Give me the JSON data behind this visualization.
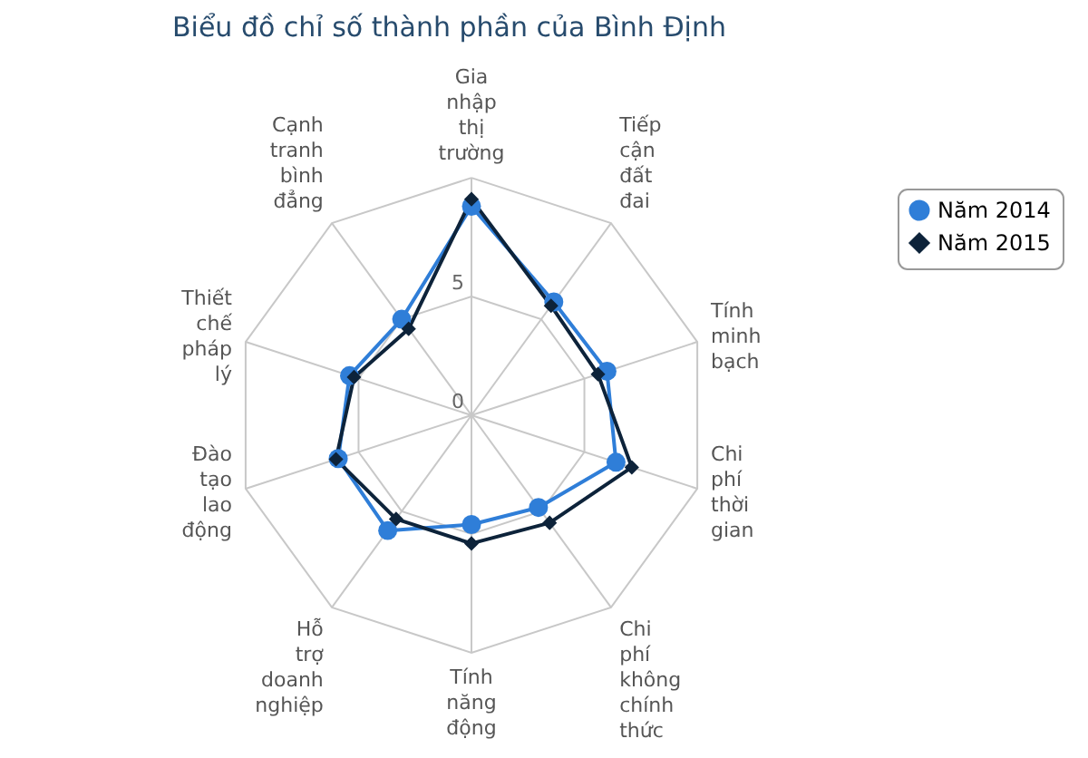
{
  "chart_data": {
    "type": "radar",
    "title": "Biểu đồ chỉ số thành phần của Bình Định",
    "categories": [
      "Gia nhập thị trường",
      "Tiếp cận đất đai",
      "Tính minh bạch",
      "Chi phí thời gian",
      "Chi phí không chính thức",
      "Tính năng động",
      "Hỗ trợ doanh nghiệp",
      "Đào tạo lao động",
      "Thiết chế pháp lý",
      "Cạnh tranh bình đẳng"
    ],
    "series": [
      {
        "name": "Năm 2014",
        "color": "#2f7ed8",
        "marker": "circle",
        "values": [
          8.8,
          5.9,
          6.0,
          6.4,
          4.8,
          4.6,
          6.0,
          5.9,
          5.4,
          5.0
        ]
      },
      {
        "name": "Năm 2015",
        "color": "#0d233a",
        "marker": "diamond",
        "values": [
          9.1,
          5.7,
          5.6,
          7.1,
          5.6,
          5.4,
          5.4,
          6.0,
          5.2,
          4.5
        ]
      }
    ],
    "ylim": [
      0,
      10
    ],
    "yticks": [
      0,
      5
    ],
    "grid": true,
    "legend": "top right"
  }
}
